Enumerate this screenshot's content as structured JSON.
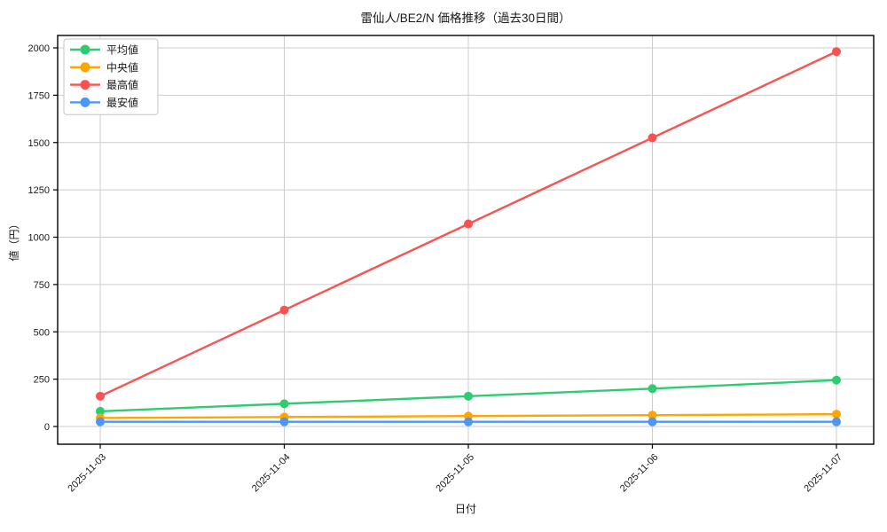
{
  "page": {
    "background": "#ffffff"
  },
  "chart_data": {
    "type": "line",
    "title": "雷仙人/BE2/N 価格推移（過去30日間）",
    "xlabel": "日付",
    "ylabel": "値（円）",
    "x": [
      "2025-11-03",
      "2025-11-04",
      "2025-11-05",
      "2025-11-06",
      "2025-11-07"
    ],
    "series": [
      {
        "name": "平均値",
        "color": "#2ecc71",
        "values": [
          80,
          120,
          160,
          200,
          245
        ]
      },
      {
        "name": "中央値",
        "color": "#ffa502",
        "values": [
          45,
          50,
          55,
          60,
          65
        ]
      },
      {
        "name": "最高値",
        "color": "#fa5252",
        "values": [
          160,
          615,
          1070,
          1525,
          1980
        ]
      },
      {
        "name": "最安値",
        "color": "#4d96f5",
        "values": [
          25,
          25,
          25,
          25,
          25
        ]
      }
    ],
    "ylim": [
      0,
      2000
    ],
    "yticks": [
      0,
      250,
      500,
      750,
      1000,
      1250,
      1500,
      1750,
      2000
    ],
    "grid": true,
    "legend_position": "upper-left"
  },
  "style": {
    "grid_color": "#cccccc",
    "spine_color": "#000000",
    "tick_color": "#000000",
    "text_color": "#1a1a1a",
    "legend_border": "#c4c4c4",
    "legend_bg": "#ffffff"
  }
}
